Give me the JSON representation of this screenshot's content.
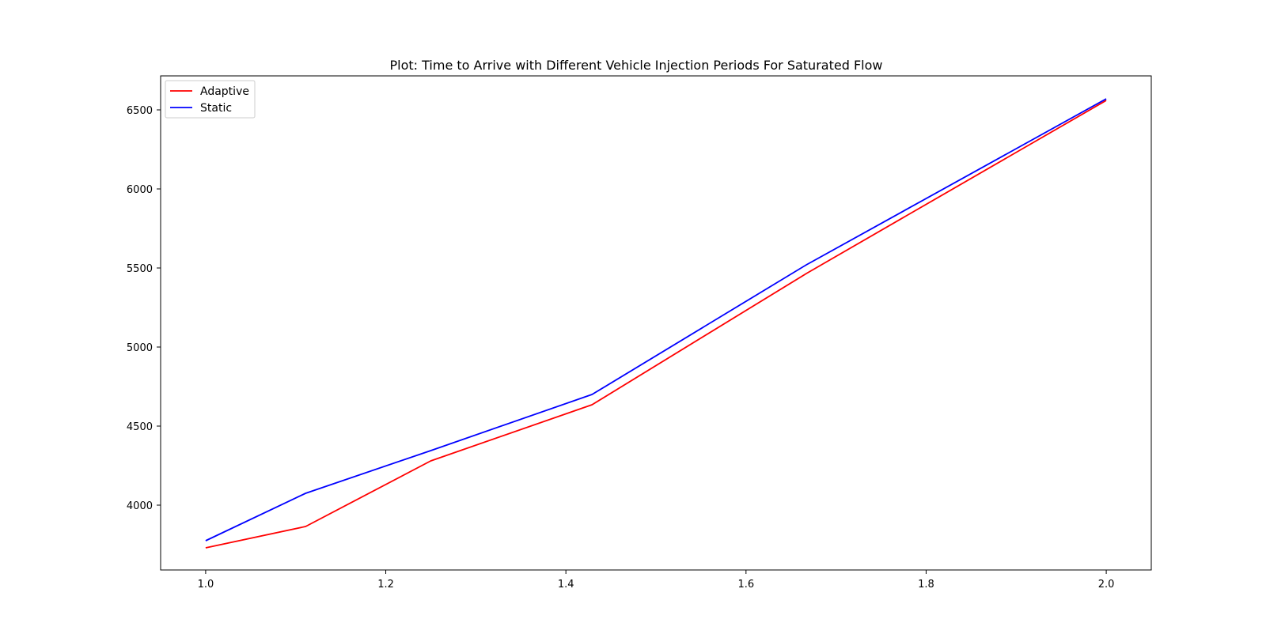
{
  "chart_data": {
    "type": "line",
    "title": "Plot: Time to Arrive with Different Vehicle Injection Periods For Saturated Flow",
    "xlabel": "",
    "ylabel": "",
    "xlim": [
      0.95,
      2.05
    ],
    "ylim": [
      3590,
      6715
    ],
    "x_ticks": [
      1.0,
      1.2,
      1.4,
      1.6,
      1.8,
      2.0
    ],
    "x_tick_labels": [
      "1.0",
      "1.2",
      "1.4",
      "1.6",
      "1.8",
      "2.0"
    ],
    "y_ticks": [
      4000,
      4500,
      5000,
      5500,
      6000,
      6500
    ],
    "y_tick_labels": [
      "4000",
      "4500",
      "5000",
      "5500",
      "6000",
      "6500"
    ],
    "grid": false,
    "legend_position": "top-left",
    "series": [
      {
        "name": "Adaptive",
        "color": "#ff0000",
        "x": [
          1.0,
          1.111,
          1.25,
          1.429,
          1.667,
          2.0
        ],
        "y": [
          3730,
          3865,
          4280,
          4635,
          5465,
          6560
        ]
      },
      {
        "name": "Static",
        "color": "#0000ff",
        "x": [
          1.0,
          1.111,
          1.25,
          1.429,
          1.667,
          2.0
        ],
        "y": [
          3775,
          4075,
          4345,
          4700,
          5520,
          6570
        ]
      }
    ]
  }
}
